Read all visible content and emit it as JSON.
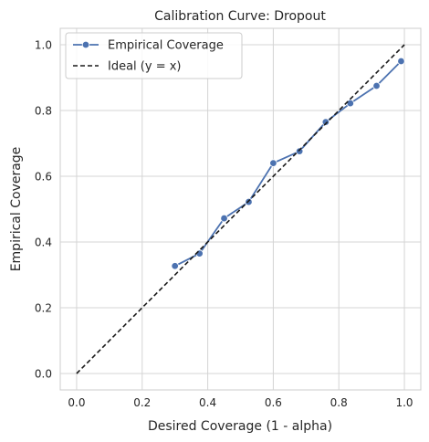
{
  "chart_data": {
    "type": "line",
    "title": "Calibration Curve: Dropout",
    "xlabel": "Desired Coverage (1 - alpha)",
    "ylabel": "Empirical Coverage",
    "xlim": [
      -0.05,
      1.05
    ],
    "ylim": [
      -0.05,
      1.05
    ],
    "xticks": [
      "0.0",
      "0.2",
      "0.4",
      "0.6",
      "0.8",
      "1.0"
    ],
    "yticks": [
      "0.0",
      "0.2",
      "0.4",
      "0.6",
      "0.8",
      "1.0"
    ],
    "grid": true,
    "legend_position": "top-left",
    "series": [
      {
        "name": "Empirical Coverage",
        "style": "solid-with-markers",
        "color": "#4c72b0",
        "x": [
          0.3,
          0.375,
          0.45,
          0.525,
          0.6,
          0.68,
          0.76,
          0.835,
          0.915,
          0.99
        ],
        "y": [
          0.327,
          0.365,
          0.472,
          0.522,
          0.64,
          0.676,
          0.765,
          0.822,
          0.875,
          0.95
        ]
      },
      {
        "name": "Ideal (y = x)",
        "style": "dashed",
        "color": "#1a1a1a",
        "x": [
          0.0,
          1.0
        ],
        "y": [
          0.0,
          1.0
        ]
      }
    ]
  }
}
